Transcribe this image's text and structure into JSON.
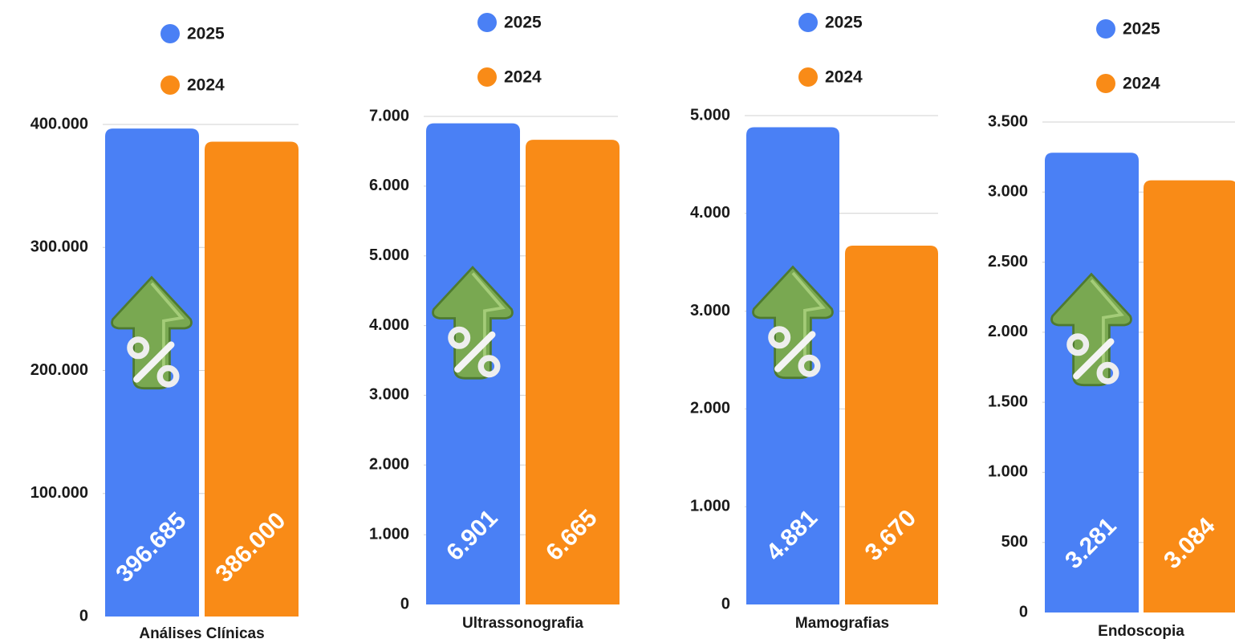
{
  "chart_data": [
    {
      "type": "bar",
      "categories": [
        "Análises Clínicas"
      ],
      "series": [
        {
          "name": "2025",
          "color": "#4a80f5",
          "values": [
            396685
          ],
          "value_labels": [
            "396.685"
          ]
        },
        {
          "name": "2024",
          "color": "#f98b17",
          "values": [
            386000
          ],
          "value_labels": [
            "386.000"
          ]
        }
      ],
      "ylim": [
        0,
        400000
      ],
      "yticks": [
        0,
        {
          "value": 100000,
          "label": "100.000"
        },
        {
          "value": 200000,
          "label": "200.000"
        },
        {
          "value": 300000,
          "label": "300.000"
        },
        {
          "value": 400000,
          "label": "400.000"
        }
      ],
      "grid": true
    },
    {
      "type": "bar",
      "categories": [
        "Ultrassonografia"
      ],
      "series": [
        {
          "name": "2025",
          "color": "#4a80f5",
          "values": [
            6901
          ],
          "value_labels": [
            "6.901"
          ]
        },
        {
          "name": "2024",
          "color": "#f98b17",
          "values": [
            6665
          ],
          "value_labels": [
            "6.665"
          ]
        }
      ],
      "ylim": [
        0,
        7000
      ],
      "yticks": [
        0,
        {
          "value": 1000,
          "label": "1.000"
        },
        {
          "value": 2000,
          "label": "2.000"
        },
        {
          "value": 3000,
          "label": "3.000"
        },
        {
          "value": 4000,
          "label": "4.000"
        },
        {
          "value": 5000,
          "label": "5.000"
        },
        {
          "value": 6000,
          "label": "6.000"
        },
        {
          "value": 7000,
          "label": "7.000"
        }
      ],
      "grid": true
    },
    {
      "type": "bar",
      "categories": [
        "Mamografias"
      ],
      "series": [
        {
          "name": "2025",
          "color": "#4a80f5",
          "values": [
            4881
          ],
          "value_labels": [
            "4.881"
          ]
        },
        {
          "name": "2024",
          "color": "#f98b17",
          "values": [
            3670
          ],
          "value_labels": [
            "3.670"
          ]
        }
      ],
      "ylim": [
        0,
        5000
      ],
      "yticks": [
        0,
        {
          "value": 1000,
          "label": "1.000"
        },
        {
          "value": 2000,
          "label": "2.000"
        },
        {
          "value": 3000,
          "label": "3.000"
        },
        {
          "value": 4000,
          "label": "4.000"
        },
        {
          "value": 5000,
          "label": "5.000"
        }
      ],
      "grid": true
    },
    {
      "type": "bar",
      "categories": [
        "Endoscopia"
      ],
      "series": [
        {
          "name": "2025",
          "color": "#4a80f5",
          "values": [
            3281
          ],
          "value_labels": [
            "3.281"
          ]
        },
        {
          "name": "2024",
          "color": "#f98b17",
          "values": [
            3084
          ],
          "value_labels": [
            "3.084"
          ]
        }
      ],
      "ylim": [
        0,
        3500
      ],
      "yticks": [
        0,
        500,
        {
          "value": 1000,
          "label": "1.000"
        },
        {
          "value": 1500,
          "label": "1.500"
        },
        {
          "value": 2000,
          "label": "2.000"
        },
        {
          "value": 2500,
          "label": "2.500"
        },
        {
          "value": 3000,
          "label": "3.000"
        },
        {
          "value": 3500,
          "label": "3.500"
        }
      ],
      "grid": true
    }
  ]
}
